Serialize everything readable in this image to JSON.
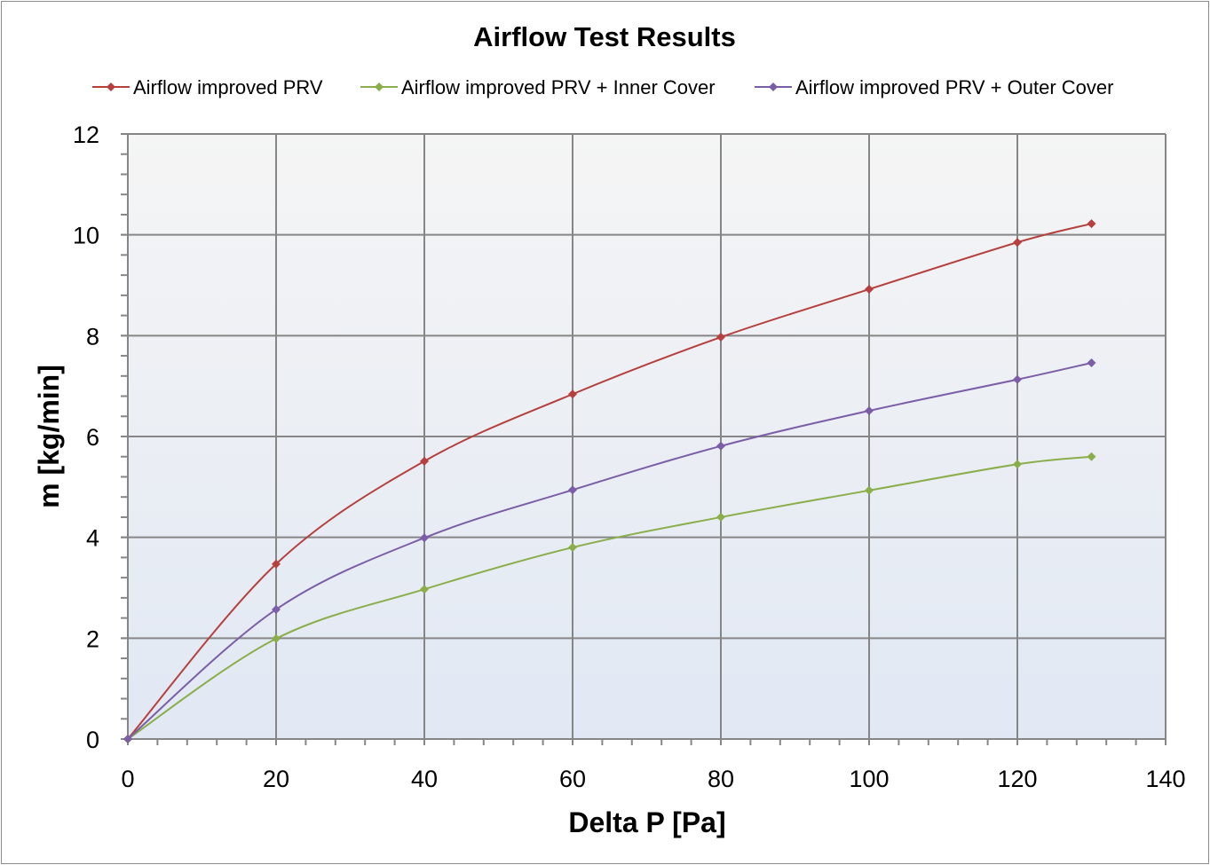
{
  "chart_data": {
    "type": "line",
    "title": "Airflow Test Results",
    "xlabel": "Delta P [Pa]",
    "ylabel": "m [kg/min]",
    "xlim": [
      0,
      140
    ],
    "ylim": [
      0,
      12
    ],
    "xticks": [
      0,
      20,
      40,
      60,
      80,
      100,
      120,
      140
    ],
    "yticks": [
      0,
      2,
      4,
      6,
      8,
      10,
      12
    ],
    "grid": true,
    "legend_position": "top",
    "x": [
      0,
      20,
      40,
      60,
      80,
      100,
      120,
      130
    ],
    "series": [
      {
        "name": "Airflow improved PRV",
        "color": "#b5403d",
        "values": [
          0,
          3.47,
          5.51,
          6.84,
          7.97,
          8.92,
          9.85,
          10.22
        ]
      },
      {
        "name": "Airflow improved PRV + Inner Cover",
        "color": "#8aae4a",
        "values": [
          0,
          1.99,
          2.97,
          3.8,
          4.4,
          4.93,
          5.45,
          5.6
        ]
      },
      {
        "name": "Airflow improved PRV + Outer Cover",
        "color": "#7b5ea7",
        "values": [
          0,
          2.57,
          3.99,
          4.94,
          5.81,
          6.51,
          7.13,
          7.46
        ]
      }
    ]
  }
}
